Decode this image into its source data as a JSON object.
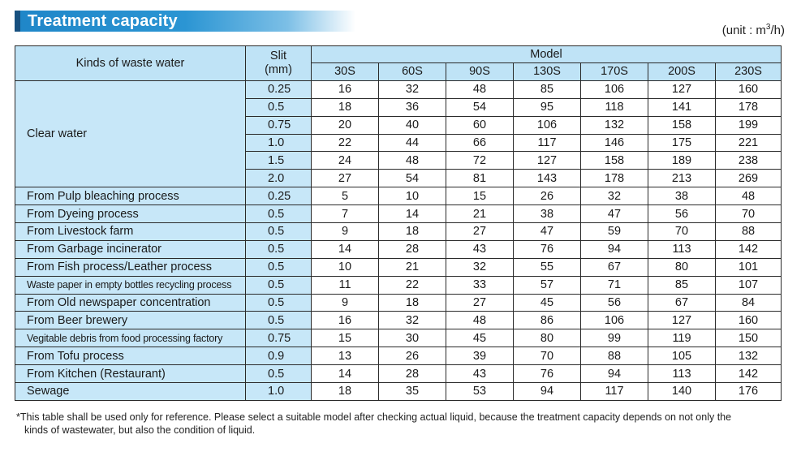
{
  "header": {
    "title": "Treatment capacity",
    "unit_prefix": "(unit : m",
    "unit_sup": "3",
    "unit_suffix": "/h)"
  },
  "table": {
    "kinds_header": "Kinds of waste water",
    "slit_header_line1": "Slit",
    "slit_header_line2": "(mm)",
    "model_header": "Model",
    "models": [
      "30S",
      "60S",
      "90S",
      "130S",
      "170S",
      "200S",
      "230S"
    ],
    "groups": [
      {
        "kind": "Clear water",
        "rows": [
          {
            "slit": "0.25",
            "values": [
              "16",
              "32",
              "48",
              "85",
              "106",
              "127",
              "160"
            ]
          },
          {
            "slit": "0.5",
            "values": [
              "18",
              "36",
              "54",
              "95",
              "118",
              "141",
              "178"
            ]
          },
          {
            "slit": "0.75",
            "values": [
              "20",
              "40",
              "60",
              "106",
              "132",
              "158",
              "199"
            ]
          },
          {
            "slit": "1.0",
            "values": [
              "22",
              "44",
              "66",
              "117",
              "146",
              "175",
              "221"
            ]
          },
          {
            "slit": "1.5",
            "values": [
              "24",
              "48",
              "72",
              "127",
              "158",
              "189",
              "238"
            ]
          },
          {
            "slit": "2.0",
            "values": [
              "27",
              "54",
              "81",
              "143",
              "178",
              "213",
              "269"
            ]
          }
        ]
      },
      {
        "kind": "From Pulp bleaching process",
        "rows": [
          {
            "slit": "0.25",
            "values": [
              "5",
              "10",
              "15",
              "26",
              "32",
              "38",
              "48"
            ]
          }
        ]
      },
      {
        "kind": "From Dyeing process",
        "rows": [
          {
            "slit": "0.5",
            "values": [
              "7",
              "14",
              "21",
              "38",
              "47",
              "56",
              "70"
            ]
          }
        ]
      },
      {
        "kind": "From Livestock farm",
        "rows": [
          {
            "slit": "0.5",
            "values": [
              "9",
              "18",
              "27",
              "47",
              "59",
              "70",
              "88"
            ]
          }
        ]
      },
      {
        "kind": "From Garbage incinerator",
        "rows": [
          {
            "slit": "0.5",
            "values": [
              "14",
              "28",
              "43",
              "76",
              "94",
              "113",
              "142"
            ]
          }
        ]
      },
      {
        "kind": "From Fish process/Leather process",
        "rows": [
          {
            "slit": "0.5",
            "values": [
              "10",
              "21",
              "32",
              "55",
              "67",
              "80",
              "101"
            ]
          }
        ]
      },
      {
        "kind": "Waste paper in empty bottles recycling process",
        "narrow": true,
        "rows": [
          {
            "slit": "0.5",
            "values": [
              "11",
              "22",
              "33",
              "57",
              "71",
              "85",
              "107"
            ]
          }
        ]
      },
      {
        "kind": "From Old newspaper concentration",
        "rows": [
          {
            "slit": "0.5",
            "values": [
              "9",
              "18",
              "27",
              "45",
              "56",
              "67",
              "84"
            ]
          }
        ]
      },
      {
        "kind": "From Beer brewery",
        "rows": [
          {
            "slit": "0.5",
            "values": [
              "16",
              "32",
              "48",
              "86",
              "106",
              "127",
              "160"
            ]
          }
        ]
      },
      {
        "kind": "Vegitable debris from food processing factory",
        "narrow": true,
        "rows": [
          {
            "slit": "0.75",
            "values": [
              "15",
              "30",
              "45",
              "80",
              "99",
              "119",
              "150"
            ]
          }
        ]
      },
      {
        "kind": "From Tofu process",
        "rows": [
          {
            "slit": "0.9",
            "values": [
              "13",
              "26",
              "39",
              "70",
              "88",
              "105",
              "132"
            ]
          }
        ]
      },
      {
        "kind": "From Kitchen (Restaurant)",
        "rows": [
          {
            "slit": "0.5",
            "values": [
              "14",
              "28",
              "43",
              "76",
              "94",
              "113",
              "142"
            ]
          }
        ]
      },
      {
        "kind": "Sewage",
        "rows": [
          {
            "slit": "1.0",
            "values": [
              "18",
              "35",
              "53",
              "94",
              "117",
              "140",
              "176"
            ]
          }
        ]
      }
    ]
  },
  "footnote": {
    "line1": "*This table shall be used only for reference. Please select a suitable model after checking actual liquid, because the treatment capacity depends on not only the",
    "line2": "kinds of wastewater, but also the condition of liquid."
  },
  "colors": {
    "title_bar": "#2b95d3",
    "header_bg": "#bfe3f6",
    "label_bg": "#c7e7f8"
  }
}
